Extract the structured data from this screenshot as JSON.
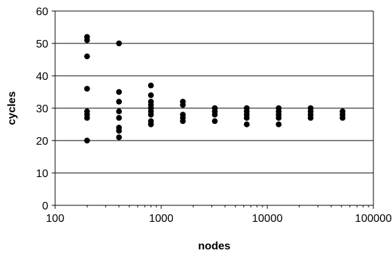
{
  "chart_data": {
    "type": "scatter",
    "title": "",
    "xlabel": "nodes",
    "ylabel": "cycles",
    "x_scale": "log",
    "xlim": [
      100,
      100000
    ],
    "ylim": [
      0,
      60
    ],
    "x_ticks": [
      100,
      1000,
      10000,
      100000
    ],
    "x_tick_labels": [
      "100",
      "1000",
      "10000",
      "100000"
    ],
    "y_ticks": [
      0,
      10,
      20,
      30,
      40,
      50,
      60
    ],
    "y_tick_labels": [
      "0",
      "10",
      "20",
      "30",
      "40",
      "50",
      "60"
    ],
    "grid": "horizontal",
    "legend": "none",
    "marker_color": "#000000",
    "series": [
      {
        "points": [
          [
            200,
            52
          ],
          [
            200,
            51
          ],
          [
            200,
            46
          ],
          [
            200,
            36
          ],
          [
            200,
            29
          ],
          [
            200,
            28
          ],
          [
            200,
            27
          ],
          [
            200,
            20
          ],
          [
            400,
            50
          ],
          [
            400,
            35
          ],
          [
            400,
            32
          ],
          [
            400,
            29
          ],
          [
            400,
            27
          ],
          [
            400,
            24
          ],
          [
            400,
            23
          ],
          [
            400,
            21
          ],
          [
            800,
            37
          ],
          [
            800,
            34
          ],
          [
            800,
            32
          ],
          [
            800,
            31
          ],
          [
            800,
            30
          ],
          [
            800,
            29
          ],
          [
            800,
            28
          ],
          [
            800,
            26
          ],
          [
            800,
            25
          ],
          [
            1600,
            32
          ],
          [
            1600,
            31
          ],
          [
            1600,
            28
          ],
          [
            1600,
            27
          ],
          [
            1600,
            26
          ],
          [
            3200,
            30
          ],
          [
            3200,
            29
          ],
          [
            3200,
            28
          ],
          [
            3200,
            26
          ],
          [
            6400,
            30
          ],
          [
            6400,
            29
          ],
          [
            6400,
            28
          ],
          [
            6400,
            27
          ],
          [
            6400,
            25
          ],
          [
            12800,
            30
          ],
          [
            12800,
            29
          ],
          [
            12800,
            28
          ],
          [
            12800,
            27
          ],
          [
            12800,
            25
          ],
          [
            25600,
            30
          ],
          [
            25600,
            29
          ],
          [
            25600,
            28
          ],
          [
            25600,
            27
          ],
          [
            51200,
            29
          ],
          [
            51200,
            28
          ],
          [
            51200,
            27
          ]
        ]
      }
    ]
  }
}
